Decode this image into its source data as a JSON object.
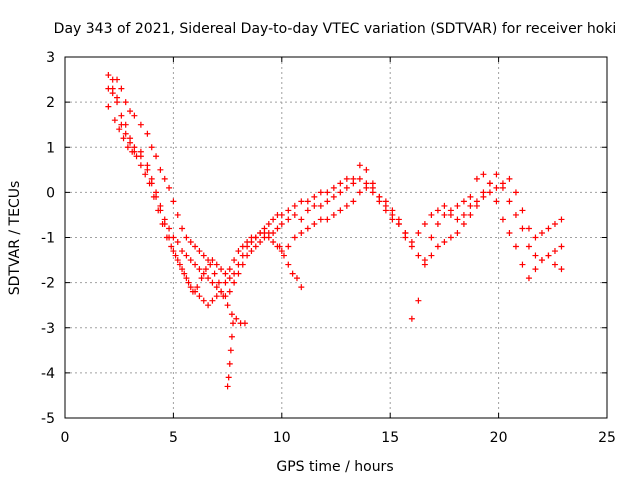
{
  "chart_data": {
    "type": "scatter",
    "marker": "+",
    "title": "Day 343 of 2021, Sidereal Day-to-day VTEC variation (SDTVAR) for receiver hoki",
    "xlabel": "GPS time / hours",
    "ylabel": "SDTVAR / TECUs",
    "xlim": [
      0,
      25
    ],
    "ylim": [
      -5,
      3
    ],
    "xticks": [
      0,
      5,
      10,
      15,
      20,
      25
    ],
    "xtick_labels": [
      "0",
      "5",
      "10",
      "15",
      "20",
      "25"
    ],
    "yticks": [
      -5,
      -4,
      -3,
      -2,
      -1,
      0,
      1,
      2,
      3
    ],
    "ytick_labels": [
      "-5",
      "-4",
      "-3",
      "-2",
      "-1",
      "0",
      "1",
      "2",
      "3"
    ],
    "grid": true,
    "colors": {
      "points": "#ff0000",
      "axes": "#000000",
      "grid": "#a0a0a0"
    },
    "series": [
      {
        "name": "trace-a",
        "x": [
          2.0,
          2.2,
          2.4,
          2.6,
          2.8,
          3.0,
          3.2,
          3.5,
          3.8,
          4.0,
          4.2,
          4.4,
          4.6,
          4.8,
          5.0,
          5.2,
          5.4,
          5.6,
          5.8,
          6.0,
          6.2,
          6.4,
          6.6,
          6.8,
          7.0,
          7.2,
          7.4,
          7.6,
          7.8,
          8.0,
          8.2,
          8.4,
          8.6,
          8.8,
          9.0,
          9.2,
          9.4,
          9.6,
          9.8,
          10.0,
          10.3,
          10.6,
          10.9,
          11.2,
          11.5,
          11.8,
          12.1,
          12.4,
          12.7,
          13.0,
          13.3,
          13.6,
          13.9,
          14.2,
          14.5,
          14.8,
          15.1,
          15.4,
          15.7,
          16.0,
          16.3,
          16.6,
          16.9,
          17.2,
          17.5,
          17.8,
          18.1,
          18.4,
          18.7,
          19.0,
          19.3,
          19.6,
          19.9,
          20.2,
          20.5,
          20.8,
          21.1,
          21.4,
          21.7,
          22.0,
          22.3,
          22.6,
          22.9
        ],
        "y": [
          2.6,
          2.3,
          2.1,
          1.7,
          1.5,
          1.2,
          0.9,
          0.8,
          0.6,
          0.3,
          0.0,
          -0.3,
          -0.6,
          -0.8,
          -1.0,
          -1.1,
          -1.3,
          -1.4,
          -1.5,
          -1.6,
          -1.7,
          -1.8,
          -1.9,
          -2.0,
          -2.1,
          -2.2,
          -2.3,
          -2.2,
          -2.0,
          -1.8,
          -1.6,
          -1.4,
          -1.3,
          -1.2,
          -1.1,
          -1.0,
          -0.9,
          -0.9,
          -0.8,
          -0.7,
          -0.6,
          -0.5,
          -0.6,
          -0.4,
          -0.3,
          -0.3,
          -0.2,
          -0.1,
          0.0,
          0.1,
          0.2,
          0.3,
          0.1,
          0.0,
          -0.1,
          -0.3,
          -0.5,
          -0.7,
          -1.0,
          -1.1,
          -0.9,
          -0.7,
          -0.5,
          -0.4,
          -0.3,
          -0.5,
          -0.6,
          -0.5,
          -0.3,
          -0.2,
          -0.1,
          0.0,
          0.1,
          0.2,
          0.3,
          0.0,
          -0.4,
          -0.8,
          -1.0,
          -0.9,
          -0.8,
          -0.7,
          -0.6
        ]
      },
      {
        "name": "trace-b",
        "x": [
          2.0,
          2.2,
          2.4,
          2.6,
          2.8,
          3.0,
          3.2,
          3.5,
          3.8,
          4.0,
          4.2,
          4.4,
          4.6,
          4.8,
          5.0,
          5.2,
          5.4,
          5.6,
          5.8,
          6.0,
          6.2,
          6.4,
          6.6,
          6.8,
          7.0,
          7.2,
          7.4,
          7.6,
          7.8,
          8.0,
          8.2,
          8.4,
          8.6,
          8.8,
          9.0,
          9.2,
          9.4,
          9.6,
          9.8,
          10.0,
          10.3,
          10.6,
          10.9,
          11.2,
          11.5,
          11.8,
          12.1,
          12.4,
          12.7,
          13.0,
          13.3,
          13.6,
          13.9,
          14.2,
          14.5,
          14.8,
          15.1,
          15.4,
          15.7,
          16.0,
          16.3,
          16.6,
          16.9,
          17.2,
          17.5,
          17.8,
          18.1,
          18.4,
          18.7,
          19.0,
          19.3,
          19.6,
          19.9,
          20.2,
          20.5,
          20.8,
          21.1,
          21.4,
          21.7,
          22.0,
          22.3,
          22.6,
          22.9
        ],
        "y": [
          1.9,
          2.2,
          2.5,
          2.3,
          2.0,
          1.8,
          1.7,
          1.5,
          1.3,
          1.0,
          0.8,
          0.5,
          0.3,
          0.1,
          -0.2,
          -0.5,
          -0.8,
          -1.0,
          -1.1,
          -1.2,
          -1.3,
          -1.4,
          -1.5,
          -1.5,
          -1.6,
          -1.7,
          -1.8,
          -1.9,
          -1.8,
          -1.6,
          -1.4,
          -1.2,
          -1.1,
          -1.0,
          -0.9,
          -0.8,
          -0.7,
          -0.6,
          -0.5,
          -0.5,
          -0.4,
          -0.3,
          -0.2,
          -0.2,
          -0.1,
          0.0,
          0.0,
          0.1,
          0.2,
          0.3,
          0.3,
          0.6,
          0.5,
          0.2,
          -0.2,
          -0.4,
          -0.6,
          -0.7,
          -0.9,
          -1.2,
          -1.4,
          -1.5,
          -1.4,
          -1.2,
          -1.1,
          -1.0,
          -0.9,
          -0.7,
          -0.5,
          -0.3,
          0.0,
          0.2,
          0.4,
          0.1,
          -0.2,
          -0.5,
          -0.8,
          -1.2,
          -1.4,
          -1.5,
          -1.4,
          -1.3,
          -1.2
        ]
      },
      {
        "name": "trace-c",
        "x": [
          2.0,
          2.2,
          2.4,
          2.6,
          2.8,
          3.0,
          3.2,
          3.5,
          3.8,
          4.0,
          4.2,
          4.4,
          4.6,
          4.8,
          5.0,
          5.2,
          5.4,
          5.6,
          5.8,
          6.0,
          6.2,
          6.4,
          6.6,
          6.8,
          7.0,
          7.2,
          7.4,
          7.6,
          7.8,
          8.0,
          8.2,
          8.4,
          8.6,
          8.8,
          9.0,
          9.2,
          9.4,
          9.6,
          9.8,
          10.0,
          10.3,
          10.6,
          10.9,
          11.2,
          11.5,
          11.8,
          12.1,
          12.4,
          12.7,
          13.0,
          13.3,
          13.6,
          13.9,
          14.2,
          14.5,
          14.8,
          15.1,
          15.4,
          15.7,
          16.0,
          16.3,
          16.6,
          16.9,
          17.2,
          17.5,
          17.8,
          18.1,
          18.4,
          18.7,
          19.0,
          19.3,
          19.6,
          19.9,
          20.2,
          20.5,
          20.8,
          21.1,
          21.4,
          21.7,
          22.0,
          22.3,
          22.6,
          22.9
        ],
        "y": [
          2.3,
          2.5,
          2.0,
          1.5,
          1.3,
          1.1,
          1.0,
          0.9,
          0.5,
          0.2,
          -0.1,
          -0.4,
          -0.7,
          -1.0,
          -1.3,
          -1.5,
          -1.7,
          -1.9,
          -2.1,
          -2.2,
          -2.3,
          -2.4,
          -2.5,
          -2.4,
          -2.3,
          -2.2,
          -2.0,
          -1.7,
          -1.5,
          -1.3,
          -1.2,
          -1.1,
          -1.0,
          -1.0,
          -0.9,
          -0.9,
          -1.0,
          -1.1,
          -1.2,
          -1.3,
          -1.2,
          -1.0,
          -0.9,
          -0.8,
          -0.7,
          -0.6,
          -0.6,
          -0.5,
          -0.4,
          -0.3,
          -0.2,
          0.0,
          0.2,
          0.1,
          -0.1,
          -0.2,
          -0.4,
          -0.6,
          -0.9,
          -2.8,
          -2.4,
          -1.6,
          -1.0,
          -0.7,
          -0.5,
          -0.4,
          -0.3,
          -0.2,
          -0.1,
          0.3,
          0.4,
          0.2,
          -0.2,
          -0.6,
          -0.9,
          -1.2,
          -1.6,
          -1.9,
          -1.7,
          -1.5,
          -1.4,
          -1.6,
          -1.7
        ]
      },
      {
        "name": "trace-d",
        "x": [
          2.3,
          2.5,
          2.7,
          2.9,
          3.1,
          3.3,
          3.5,
          3.7,
          3.9,
          4.1,
          4.3,
          4.5,
          4.7,
          4.9,
          5.1,
          5.3,
          5.5,
          5.7,
          5.9,
          6.1,
          6.3,
          6.5,
          6.7,
          6.9,
          7.1,
          7.3,
          7.5,
          7.7,
          7.9,
          8.1,
          8.3
        ],
        "y": [
          1.6,
          1.4,
          1.2,
          1.0,
          0.9,
          0.8,
          0.6,
          0.4,
          0.2,
          -0.1,
          -0.4,
          -0.7,
          -1.0,
          -1.2,
          -1.4,
          -1.6,
          -1.8,
          -2.0,
          -2.2,
          -2.1,
          -1.9,
          -1.7,
          -1.6,
          -1.8,
          -2.0,
          -2.3,
          -2.5,
          -2.7,
          -2.8,
          -2.9,
          -2.9
        ]
      },
      {
        "name": "dip-sample",
        "x": [
          7.5,
          7.55,
          7.6,
          7.65,
          7.7,
          7.75
        ],
        "y": [
          -4.3,
          -4.1,
          -3.8,
          -3.5,
          -3.2,
          -2.9
        ]
      },
      {
        "name": "dip-10h",
        "x": [
          9.9,
          10.1,
          10.3,
          10.5,
          10.7,
          10.9
        ],
        "y": [
          -1.2,
          -1.4,
          -1.6,
          -1.8,
          -1.9,
          -2.1
        ]
      }
    ]
  }
}
